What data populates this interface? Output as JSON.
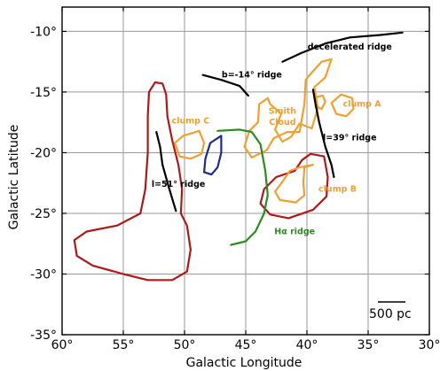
{
  "chart_data": {
    "type": "line",
    "xlabel": "Galactic Longitude",
    "ylabel": "Galactic Latitude",
    "xlim": [
      60,
      30
    ],
    "ylim": [
      -35,
      -8
    ],
    "grid": true,
    "x_ticks": [
      {
        "value": 60,
        "label": "60°"
      },
      {
        "value": 55,
        "label": "55°"
      },
      {
        "value": 50,
        "label": "50°"
      },
      {
        "value": 45,
        "label": "45°"
      },
      {
        "value": 40,
        "label": "40°"
      },
      {
        "value": 35,
        "label": "35°"
      },
      {
        "value": 30,
        "label": "30°"
      }
    ],
    "y_ticks": [
      {
        "value": -10,
        "label": "-10°"
      },
      {
        "value": -15,
        "label": "-15°"
      },
      {
        "value": -20,
        "label": "-20°"
      },
      {
        "value": -25,
        "label": "-25°"
      },
      {
        "value": -30,
        "label": "-30°"
      },
      {
        "value": -35,
        "label": "-35°"
      }
    ],
    "colors": {
      "red": "#b01818",
      "orange": "#f0a030",
      "green": "#2a8c1e",
      "navy": "#1c2a8c",
      "black": "#000000",
      "grid": "#9a9a9a"
    },
    "annotations": [
      {
        "id": "decelerated",
        "text": "decelerated ridge",
        "x": 36.5,
        "y": -11.5,
        "color": "#000000"
      },
      {
        "id": "b14",
        "text": "b=-14° ridge",
        "x": 44.5,
        "y": -13.8,
        "color": "#000000"
      },
      {
        "id": "smith1",
        "text": "Smith",
        "x": 42.0,
        "y": -16.8,
        "color": "#f0a030"
      },
      {
        "id": "smith2",
        "text": "Cloud",
        "x": 42.0,
        "y": -17.7,
        "color": "#f0a030"
      },
      {
        "id": "clumpA",
        "text": "clump A",
        "x": 35.5,
        "y": -16.2,
        "color": "#f0a030"
      },
      {
        "id": "clumpC",
        "text": "clump C",
        "x": 49.5,
        "y": -17.6,
        "color": "#f0a030"
      },
      {
        "id": "l39",
        "text": "l=39° ridge",
        "x": 36.5,
        "y": -19.0,
        "color": "#000000"
      },
      {
        "id": "l51",
        "text": "l=51° ridge",
        "x": 50.5,
        "y": -22.8,
        "color": "#000000"
      },
      {
        "id": "clumpB",
        "text": "clump B",
        "x": 37.5,
        "y": -23.2,
        "color": "#f0a030"
      },
      {
        "id": "halpha",
        "text": "Hα ridge",
        "x": 41.0,
        "y": -26.7,
        "color": "#2a8c1e"
      }
    ],
    "scalebar": {
      "label": "500 pc"
    },
    "series": [
      {
        "id": "big-red-region",
        "color": "#b01818",
        "closed": true,
        "points": [
          [
            52.4,
            -14.2
          ],
          [
            52.9,
            -15.0
          ],
          [
            53.0,
            -17.0
          ],
          [
            53.0,
            -20.0
          ],
          [
            53.2,
            -23.0
          ],
          [
            53.6,
            -25.0
          ],
          [
            55.5,
            -26.0
          ],
          [
            58.0,
            -26.5
          ],
          [
            59.0,
            -27.2
          ],
          [
            58.8,
            -28.5
          ],
          [
            57.5,
            -29.3
          ],
          [
            55.0,
            -30.0
          ],
          [
            53.0,
            -30.5
          ],
          [
            51.0,
            -30.5
          ],
          [
            49.8,
            -29.8
          ],
          [
            49.5,
            -28.0
          ],
          [
            49.8,
            -26.0
          ],
          [
            50.3,
            -25.0
          ],
          [
            50.2,
            -23.0
          ],
          [
            50.5,
            -21.0
          ],
          [
            51.0,
            -19.0
          ],
          [
            51.4,
            -17.0
          ],
          [
            51.5,
            -15.2
          ],
          [
            51.8,
            -14.3
          ],
          [
            52.4,
            -14.2
          ]
        ]
      },
      {
        "id": "red-clump-b-outer",
        "color": "#b01818",
        "closed": true,
        "points": [
          [
            39.7,
            -20.1
          ],
          [
            38.6,
            -20.3
          ],
          [
            38.3,
            -22.0
          ],
          [
            38.4,
            -23.6
          ],
          [
            39.5,
            -24.7
          ],
          [
            41.5,
            -25.4
          ],
          [
            43.0,
            -25.1
          ],
          [
            43.8,
            -24.2
          ],
          [
            43.5,
            -23.0
          ],
          [
            42.5,
            -22.0
          ],
          [
            41.0,
            -21.5
          ],
          [
            40.4,
            -20.6
          ],
          [
            39.7,
            -20.1
          ]
        ]
      },
      {
        "id": "navy-clump",
        "color": "#1c2a8c",
        "closed": true,
        "points": [
          [
            47.0,
            -18.6
          ],
          [
            47.9,
            -19.2
          ],
          [
            48.3,
            -20.5
          ],
          [
            48.4,
            -21.6
          ],
          [
            47.8,
            -21.8
          ],
          [
            47.3,
            -21.2
          ],
          [
            47.0,
            -20.0
          ],
          [
            47.0,
            -18.6
          ]
        ]
      },
      {
        "id": "orange-smith-cloud",
        "color": "#f0a030",
        "closed": true,
        "points": [
          [
            38.0,
            -12.3
          ],
          [
            38.5,
            -13.8
          ],
          [
            39.4,
            -14.6
          ],
          [
            39.1,
            -16.3
          ],
          [
            39.6,
            -18.0
          ],
          [
            40.6,
            -17.6
          ],
          [
            41.3,
            -18.7
          ],
          [
            42.0,
            -19.1
          ],
          [
            42.6,
            -18.1
          ],
          [
            42.1,
            -16.8
          ],
          [
            43.0,
            -16.0
          ],
          [
            43.2,
            -15.5
          ],
          [
            43.9,
            -16.0
          ],
          [
            44.0,
            -17.5
          ],
          [
            44.7,
            -18.2
          ],
          [
            45.1,
            -19.5
          ],
          [
            44.5,
            -20.4
          ],
          [
            43.3,
            -19.8
          ],
          [
            42.7,
            -18.8
          ],
          [
            41.6,
            -18.3
          ],
          [
            40.6,
            -18.3
          ],
          [
            40.2,
            -16.0
          ],
          [
            40.1,
            -14.0
          ],
          [
            39.6,
            -13.4
          ],
          [
            38.8,
            -12.5
          ],
          [
            38.0,
            -12.3
          ]
        ]
      },
      {
        "id": "orange-clump-a",
        "color": "#f0a030",
        "closed": true,
        "points": [
          [
            36.3,
            -15.5
          ],
          [
            37.2,
            -15.2
          ],
          [
            38.0,
            -15.9
          ],
          [
            37.6,
            -16.8
          ],
          [
            36.8,
            -17.0
          ],
          [
            36.2,
            -16.4
          ],
          [
            36.3,
            -15.5
          ]
        ]
      },
      {
        "id": "orange-clump-b",
        "color": "#f0a030",
        "closed": true,
        "points": [
          [
            39.5,
            -21.0
          ],
          [
            40.2,
            -21.2
          ],
          [
            40.3,
            -22.5
          ],
          [
            40.2,
            -23.5
          ],
          [
            40.9,
            -24.1
          ],
          [
            42.2,
            -23.9
          ],
          [
            42.6,
            -23.2
          ],
          [
            42.0,
            -22.4
          ],
          [
            41.4,
            -21.5
          ],
          [
            40.6,
            -21.2
          ],
          [
            39.5,
            -21.0
          ]
        ]
      },
      {
        "id": "orange-clump-c",
        "color": "#f0a030",
        "closed": true,
        "points": [
          [
            48.8,
            -18.2
          ],
          [
            50.1,
            -18.6
          ],
          [
            50.8,
            -19.2
          ],
          [
            50.4,
            -20.3
          ],
          [
            49.5,
            -20.5
          ],
          [
            48.6,
            -20.1
          ],
          [
            48.4,
            -19.2
          ],
          [
            48.8,
            -18.2
          ]
        ]
      },
      {
        "id": "orange-small-1",
        "color": "#f0a030",
        "closed": true,
        "points": [
          [
            38.7,
            -15.3
          ],
          [
            39.2,
            -15.4
          ],
          [
            39.3,
            -16.2
          ],
          [
            38.8,
            -16.4
          ],
          [
            38.5,
            -15.8
          ],
          [
            38.7,
            -15.3
          ]
        ]
      },
      {
        "id": "decelerated-ridge",
        "color": "#000000",
        "closed": false,
        "points": [
          [
            32.2,
            -10.1
          ],
          [
            34.0,
            -10.3
          ],
          [
            36.5,
            -10.5
          ],
          [
            38.5,
            -11.0
          ],
          [
            40.5,
            -11.8
          ],
          [
            42.0,
            -12.5
          ]
        ]
      },
      {
        "id": "b14-ridge",
        "color": "#000000",
        "closed": false,
        "points": [
          [
            48.5,
            -13.6
          ],
          [
            47.0,
            -14.0
          ],
          [
            45.5,
            -14.5
          ],
          [
            44.8,
            -15.3
          ]
        ]
      },
      {
        "id": "l39-ridge",
        "color": "#000000",
        "closed": false,
        "points": [
          [
            39.5,
            -14.8
          ],
          [
            39.3,
            -16.0
          ],
          [
            39.0,
            -17.5
          ],
          [
            38.5,
            -19.5
          ],
          [
            38.0,
            -21.0
          ],
          [
            37.8,
            -22.0
          ]
        ]
      },
      {
        "id": "l51-ridge",
        "color": "#000000",
        "closed": false,
        "points": [
          [
            52.3,
            -18.3
          ],
          [
            52.0,
            -19.5
          ],
          [
            51.8,
            -21.0
          ],
          [
            51.3,
            -22.8
          ],
          [
            50.7,
            -24.8
          ]
        ]
      },
      {
        "id": "halpha-ridge",
        "color": "#2a8c1e",
        "closed": false,
        "points": [
          [
            47.3,
            -18.2
          ],
          [
            45.5,
            -18.1
          ],
          [
            44.5,
            -18.3
          ],
          [
            43.8,
            -19.3
          ],
          [
            43.4,
            -21.5
          ],
          [
            43.2,
            -23.5
          ],
          [
            43.5,
            -25.0
          ],
          [
            44.2,
            -26.5
          ],
          [
            45.0,
            -27.3
          ],
          [
            46.2,
            -27.6
          ]
        ]
      }
    ]
  }
}
